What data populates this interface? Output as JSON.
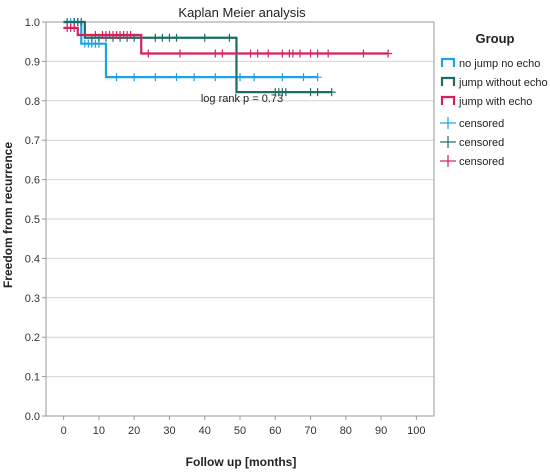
{
  "chart_data": {
    "type": "line",
    "subtype": "kaplan-meier-step",
    "title": "Kaplan Meier analysis",
    "xlabel": "Follow up [months]",
    "ylabel": "Freedom from recurrence",
    "xlim": [
      -5,
      105
    ],
    "ylim": [
      0.0,
      1.0
    ],
    "x_ticks": [
      "0",
      "10",
      "20",
      "30",
      "40",
      "50",
      "60",
      "70",
      "80",
      "90",
      "100"
    ],
    "y_ticks": [
      "0.0",
      "0.1",
      "0.2",
      "0.3",
      "0.4",
      "0.5",
      "0.6",
      "0.7",
      "0.8",
      "0.9",
      "1.0"
    ],
    "x_tick_values": [
      0,
      10,
      20,
      30,
      40,
      50,
      60,
      70,
      80,
      90,
      100
    ],
    "y_tick_values": [
      0.0,
      0.1,
      0.2,
      0.3,
      0.4,
      0.5,
      0.6,
      0.7,
      0.8,
      0.9,
      1.0
    ],
    "grid": "horizontal",
    "legend_title": "Group",
    "legend_placement": "right",
    "annotation": "log rank p = 0.73",
    "series": [
      {
        "name": "no jump no echo",
        "color": "#1ea1e8",
        "steps": [
          [
            0,
            1.0
          ],
          [
            5,
            0.945
          ],
          [
            12,
            0.86
          ],
          [
            72,
            0.86
          ]
        ],
        "censored": [
          2,
          3,
          4,
          6,
          7,
          8,
          9,
          10,
          15,
          20,
          26,
          32,
          37,
          43,
          50,
          54,
          62,
          68,
          72
        ]
      },
      {
        "name": "jump without echo",
        "color": "#1a6e66",
        "steps": [
          [
            0,
            1.0
          ],
          [
            6,
            0.96
          ],
          [
            49,
            0.822
          ],
          [
            76,
            0.822
          ]
        ],
        "censored": [
          1,
          3,
          4,
          5,
          8,
          10,
          12,
          14,
          16,
          18,
          20,
          26,
          28,
          30,
          32,
          40,
          47,
          60,
          61,
          62,
          63,
          70,
          72,
          76
        ]
      },
      {
        "name": "jump with echo",
        "color": "#d6215e",
        "steps": [
          [
            0,
            0.985
          ],
          [
            4,
            0.967
          ],
          [
            22,
            0.92
          ],
          [
            92,
            0.92
          ]
        ],
        "censored": [
          1,
          2,
          3,
          9,
          11,
          12,
          13,
          14,
          15,
          16,
          17,
          18,
          19,
          24,
          33,
          43,
          45,
          53,
          55,
          58,
          62,
          64,
          65,
          67,
          70,
          72,
          75,
          85,
          92
        ]
      }
    ],
    "censored_legend": [
      {
        "label": "censored",
        "color": "#1ea1e8"
      },
      {
        "label": "censored",
        "color": "#1a6e66"
      },
      {
        "label": "censored",
        "color": "#d6215e"
      }
    ]
  }
}
